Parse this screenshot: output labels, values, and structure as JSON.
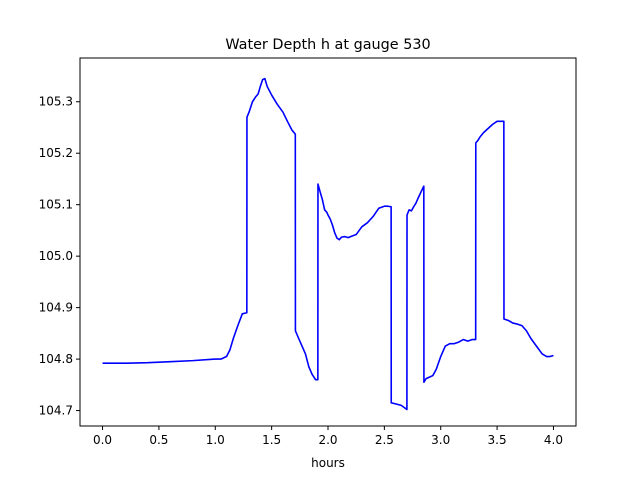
{
  "chart_data": {
    "type": "line",
    "title": "Water Depth h at gauge 530",
    "xlabel": "hours",
    "ylabel": "",
    "xlim": [
      -0.2,
      4.2
    ],
    "ylim": [
      104.67,
      105.385
    ],
    "grid": false,
    "line_color": "#0000ff",
    "xticks": [
      0.0,
      0.5,
      1.0,
      1.5,
      2.0,
      2.5,
      3.0,
      3.5,
      4.0
    ],
    "xtick_labels": [
      "0.0",
      "0.5",
      "1.0",
      "1.5",
      "2.0",
      "2.5",
      "3.0",
      "3.5",
      "4.0"
    ],
    "yticks": [
      104.7,
      104.8,
      104.9,
      105.0,
      105.1,
      105.2,
      105.3
    ],
    "ytick_labels": [
      "104.7",
      "104.8",
      "104.9",
      "105.0",
      "105.1",
      "105.2",
      "105.3"
    ],
    "series": [
      {
        "x": [
          0.0,
          0.2,
          0.4,
          0.6,
          0.8,
          1.0,
          1.05,
          1.1,
          1.13,
          1.16,
          1.2,
          1.24,
          1.28,
          1.281,
          1.3,
          1.33,
          1.36,
          1.38,
          1.4,
          1.42,
          1.44,
          1.46,
          1.5,
          1.55,
          1.6,
          1.64,
          1.68,
          1.71,
          1.711,
          1.74,
          1.77,
          1.8,
          1.83,
          1.86,
          1.89,
          1.91,
          1.911,
          1.93,
          1.95,
          1.97,
          1.99,
          2.0,
          2.02,
          2.04,
          2.06,
          2.08,
          2.1,
          2.12,
          2.15,
          2.18,
          2.2,
          2.25,
          2.3,
          2.35,
          2.4,
          2.45,
          2.5,
          2.53,
          2.56,
          2.561,
          2.6,
          2.65,
          2.7,
          2.701,
          2.72,
          2.74,
          2.76,
          2.78,
          2.8,
          2.83,
          2.85,
          2.851,
          2.87,
          2.9,
          2.93,
          2.96,
          3.0,
          3.04,
          3.08,
          3.12,
          3.16,
          3.2,
          3.24,
          3.28,
          3.31,
          3.311,
          3.33,
          3.35,
          3.38,
          3.42,
          3.46,
          3.5,
          3.53,
          3.56,
          3.561,
          3.6,
          3.64,
          3.68,
          3.72,
          3.76,
          3.8,
          3.85,
          3.9,
          3.94,
          3.97,
          4.0
        ],
        "y": [
          104.792,
          104.792,
          104.793,
          104.795,
          104.797,
          104.8,
          104.8,
          104.805,
          104.818,
          104.84,
          104.865,
          104.888,
          104.89,
          105.27,
          105.28,
          105.3,
          105.31,
          105.315,
          105.33,
          105.343,
          105.345,
          105.33,
          105.313,
          105.295,
          105.28,
          105.262,
          105.245,
          105.237,
          104.855,
          104.84,
          104.825,
          104.81,
          104.785,
          104.77,
          104.76,
          104.76,
          105.14,
          105.125,
          105.11,
          105.09,
          105.085,
          105.08,
          105.072,
          105.06,
          105.045,
          105.035,
          105.032,
          105.037,
          105.038,
          105.036,
          105.038,
          105.042,
          105.057,
          105.065,
          105.077,
          105.093,
          105.097,
          105.097,
          105.096,
          104.715,
          104.713,
          104.71,
          104.702,
          105.08,
          105.09,
          105.088,
          105.096,
          105.103,
          105.113,
          105.127,
          105.136,
          104.755,
          104.762,
          104.765,
          104.768,
          104.78,
          104.805,
          104.825,
          104.83,
          104.83,
          104.833,
          104.838,
          104.835,
          104.838,
          104.838,
          105.22,
          105.225,
          105.232,
          105.24,
          105.248,
          105.256,
          105.262,
          105.262,
          105.262,
          104.878,
          104.875,
          104.87,
          104.868,
          104.865,
          104.855,
          104.84,
          104.825,
          104.81,
          104.805,
          104.805,
          104.807
        ]
      }
    ]
  }
}
